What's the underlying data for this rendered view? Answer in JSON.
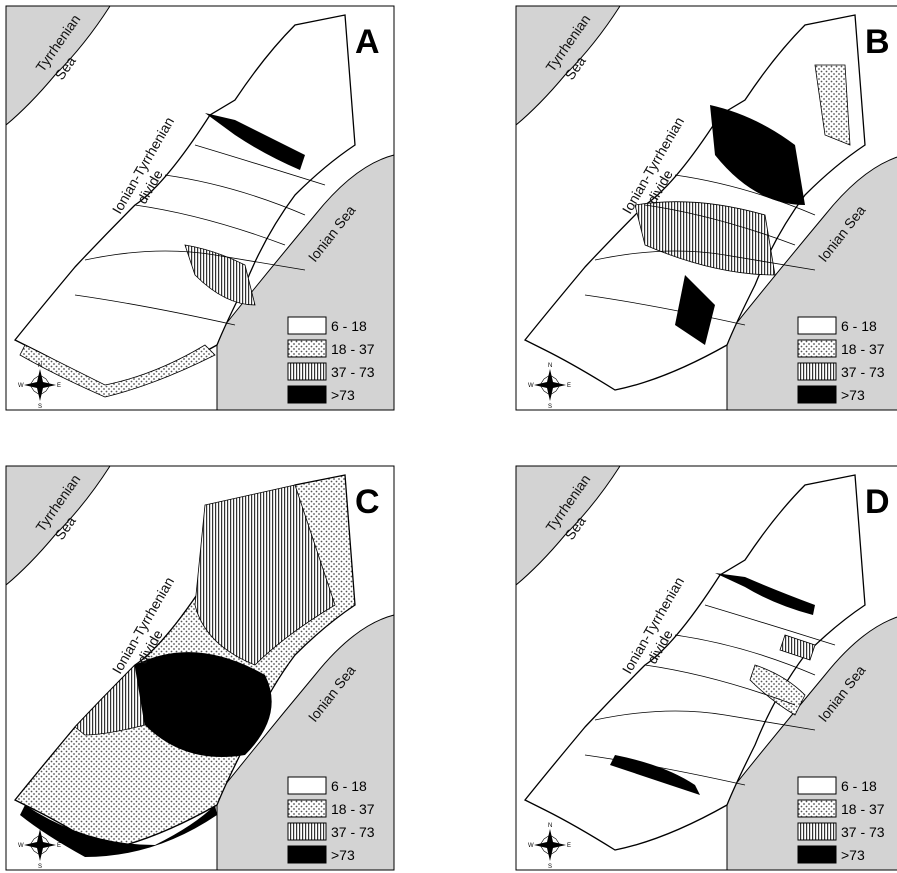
{
  "panels": [
    {
      "letter": "A",
      "legend_fill_pattern": "pattern-a"
    },
    {
      "letter": "B"
    },
    {
      "letter": "C"
    },
    {
      "letter": "D"
    }
  ],
  "labels": {
    "tyrrhenian_line1": "Tyrrhenian",
    "tyrrhenian_line2": "Sea",
    "divide_line1": "Ionian-Tyrrhenian",
    "divide_line2": "divide",
    "ionian": "Ionian Sea"
  },
  "legend": [
    {
      "label": "6 - 18",
      "fill": "white"
    },
    {
      "label": "18 - 37",
      "fill": "dots"
    },
    {
      "label": "37 - 73",
      "fill": "vertical-stripes"
    },
    {
      "label": ">73",
      "fill": "black"
    }
  ],
  "compass": {
    "n": "N",
    "s": "S",
    "e": "E",
    "w": "W"
  },
  "colors": {
    "sea": "#d3d3d3",
    "class_high": "#000000",
    "outline": "#000000"
  }
}
